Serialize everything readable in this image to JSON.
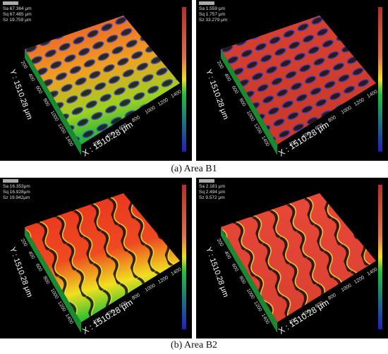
{
  "panels": [
    {
      "stats": [
        "Sa 67.364 μm",
        "Sq 67.485 μm",
        "Sz 19.759 μm"
      ],
      "x_label": "X : 1510.28 μm",
      "y_label": "Y : 1510.28 μm",
      "x_ticks": [
        200,
        400,
        600,
        800,
        1000,
        1200,
        1400
      ],
      "y_ticks": [
        200,
        400,
        600,
        800,
        1000,
        1200,
        1400
      ]
    },
    {
      "stats": [
        "Sa 1.559 μm",
        "Sq 1.757 μm",
        "Sz 33.279 μm"
      ],
      "x_label": "X : 1510.28 μm",
      "y_label": "Y : 1510.28 μm",
      "x_ticks": [
        200,
        400,
        600,
        800,
        1000,
        1200,
        1400
      ],
      "y_ticks": [
        200,
        400,
        600,
        800,
        1000,
        1200,
        1400
      ]
    },
    {
      "stats": [
        "Sa 16.353μm",
        "Sq 16.928μm",
        "Sz 19.942μm"
      ],
      "x_label": "X : 1510.28 μm",
      "y_label": "Y : 1510.28 μm",
      "x_ticks": [
        200,
        400,
        600,
        800,
        1000,
        1200,
        1400
      ],
      "y_ticks": [
        200,
        400,
        600,
        800,
        1000,
        1200,
        1400
      ]
    },
    {
      "stats": [
        "Sa 2.181 μm",
        "Sq 2.494 μm",
        "Sz 9.572 μm"
      ],
      "x_label": "X : 1510.28 μm",
      "y_label": "Y : 1510.28 μm",
      "x_ticks": [
        200,
        400,
        600,
        800,
        1000,
        1200,
        1400
      ],
      "y_ticks": [
        200,
        400,
        600,
        800,
        1000,
        1200,
        1400
      ]
    }
  ],
  "captions": [
    "(a) Area B1",
    "(b) Area B2"
  ]
}
